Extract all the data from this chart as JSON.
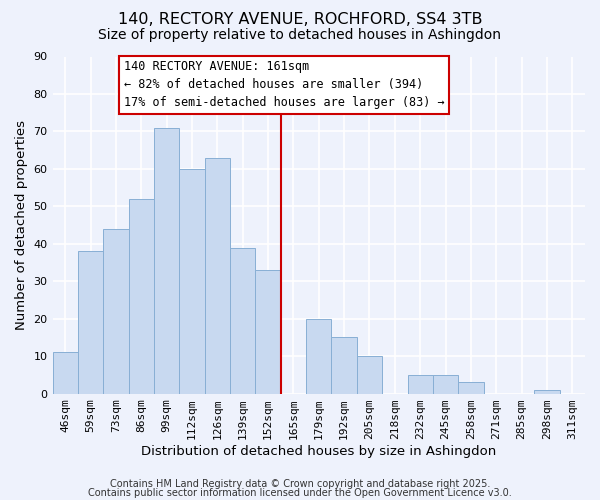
{
  "title": "140, RECTORY AVENUE, ROCHFORD, SS4 3TB",
  "subtitle": "Size of property relative to detached houses in Ashingdon",
  "xlabel": "Distribution of detached houses by size in Ashingdon",
  "ylabel": "Number of detached properties",
  "categories": [
    "46sqm",
    "59sqm",
    "73sqm",
    "86sqm",
    "99sqm",
    "112sqm",
    "126sqm",
    "139sqm",
    "152sqm",
    "165sqm",
    "179sqm",
    "192sqm",
    "205sqm",
    "218sqm",
    "232sqm",
    "245sqm",
    "258sqm",
    "271sqm",
    "285sqm",
    "298sqm",
    "311sqm"
  ],
  "values": [
    11,
    38,
    44,
    52,
    71,
    60,
    63,
    39,
    33,
    0,
    20,
    15,
    10,
    0,
    5,
    5,
    3,
    0,
    0,
    1,
    0
  ],
  "bar_color": "#c8d9f0",
  "bar_edge_color": "#88afd4",
  "annotation_label": "140 RECTORY AVENUE: 161sqm",
  "annotation_line1": "← 82% of detached houses are smaller (394)",
  "annotation_line2": "17% of semi-detached houses are larger (83) →",
  "annotation_box_facecolor": "#ffffff",
  "annotation_box_edgecolor": "#cc0000",
  "vline_color": "#cc0000",
  "ylim": [
    0,
    90
  ],
  "yticks": [
    0,
    10,
    20,
    30,
    40,
    50,
    60,
    70,
    80,
    90
  ],
  "footnote1": "Contains HM Land Registry data © Crown copyright and database right 2025.",
  "footnote2": "Contains public sector information licensed under the Open Government Licence v3.0.",
  "background_color": "#eef2fc",
  "grid_color": "#ffffff",
  "title_fontsize": 11.5,
  "subtitle_fontsize": 10,
  "axis_label_fontsize": 9.5,
  "tick_fontsize": 8,
  "annotation_fontsize": 8.5,
  "footnote_fontsize": 7
}
